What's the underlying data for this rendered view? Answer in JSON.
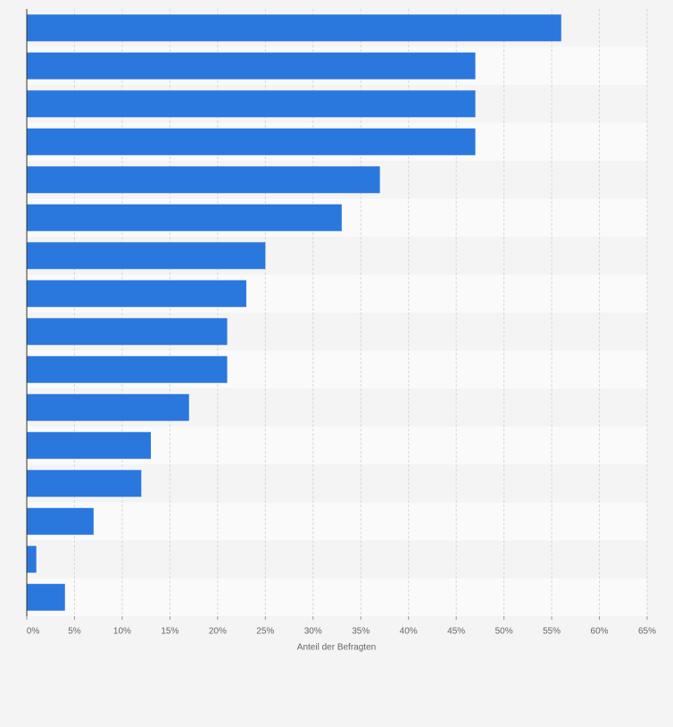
{
  "chart_data": {
    "type": "bar",
    "orientation": "horizontal",
    "categories": [
      null,
      null,
      null,
      null,
      null,
      null,
      null,
      null,
      null,
      null,
      null,
      null,
      null,
      null,
      null,
      null
    ],
    "values": [
      56,
      47,
      47,
      47,
      37,
      33,
      25,
      23,
      21,
      21,
      17,
      13,
      12,
      7,
      1,
      4
    ],
    "color": "#2a77de",
    "xlabel": "Anteil der Befragten",
    "xlim": [
      0,
      65
    ],
    "xticks": [
      {
        "value": 0,
        "label": "0%"
      },
      {
        "value": 5,
        "label": "5%"
      },
      {
        "value": 10,
        "label": "10%"
      },
      {
        "value": 15,
        "label": "15%"
      },
      {
        "value": 20,
        "label": "20%"
      },
      {
        "value": 25,
        "label": "25%"
      },
      {
        "value": 30,
        "label": "30%"
      },
      {
        "value": 35,
        "label": "35%"
      },
      {
        "value": 40,
        "label": "40%"
      },
      {
        "value": 45,
        "label": "45%"
      },
      {
        "value": 50,
        "label": "50%"
      },
      {
        "value": 55,
        "label": "55%"
      },
      {
        "value": 60,
        "label": "60%"
      },
      {
        "value": 65,
        "label": "65%"
      }
    ],
    "grid": true
  }
}
